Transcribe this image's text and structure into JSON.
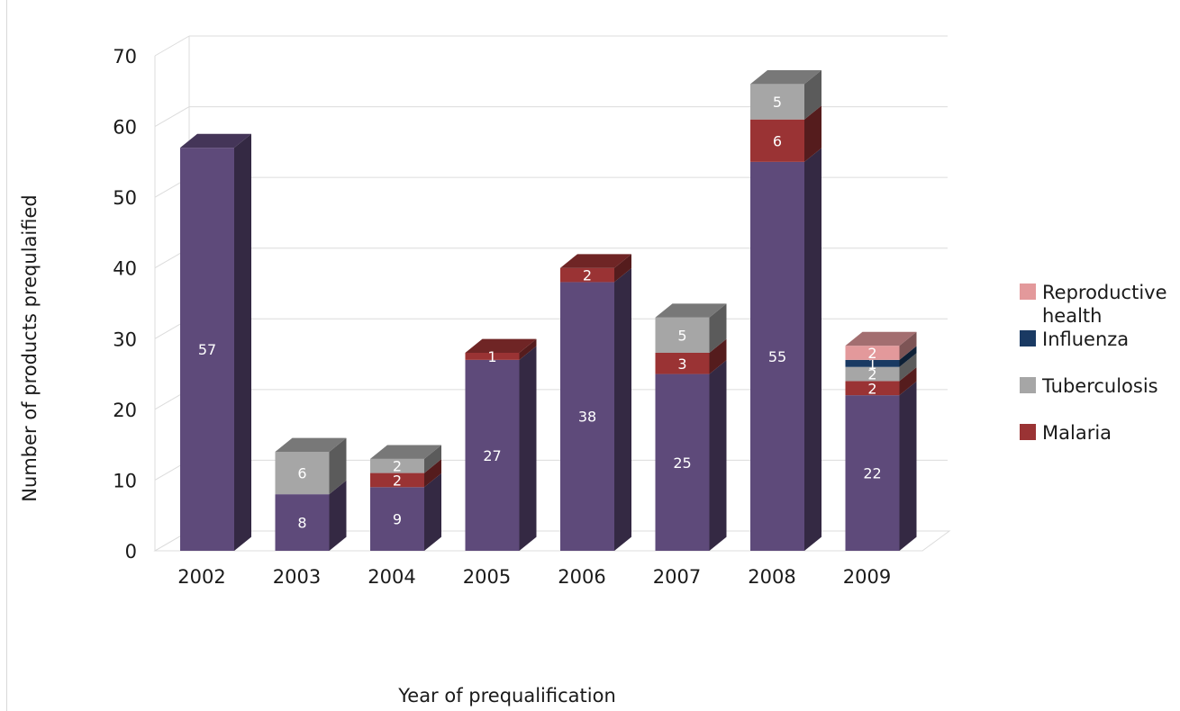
{
  "chart_data": {
    "type": "bar",
    "stacked": true,
    "three_d": true,
    "categories": [
      "2002",
      "2003",
      "2004",
      "2005",
      "2006",
      "2007",
      "2008",
      "2009"
    ],
    "series": [
      {
        "name": "Malaria",
        "color": "#9a3334",
        "values": [
          0,
          0,
          2,
          1,
          2,
          3,
          6,
          2
        ]
      },
      {
        "name": "Tuberculosis",
        "color": "#a6a6a6",
        "values": [
          0,
          6,
          2,
          0,
          0,
          5,
          5,
          2
        ]
      },
      {
        "name": "Influenza",
        "color": "#1a3a63",
        "values": [
          0,
          0,
          0,
          0,
          0,
          0,
          0,
          1
        ]
      },
      {
        "name": "Reproductive health",
        "color": "#e3999b",
        "values": [
          0,
          0,
          0,
          0,
          0,
          0,
          0,
          2
        ]
      }
    ],
    "base_series": {
      "color": "#5e4a7a",
      "values": [
        57,
        8,
        9,
        27,
        38,
        25,
        55,
        22
      ]
    },
    "xlabel": "Year of prequalification",
    "ylabel": "Number of products prequlaified",
    "ylim": [
      0,
      70
    ],
    "yticks": [
      0,
      10,
      20,
      30,
      40,
      50,
      60,
      70
    ],
    "grid": true,
    "legend_position": "right",
    "legend_order": [
      "Reproductive health",
      "Influenza",
      "Tuberculosis",
      "Malaria"
    ]
  }
}
